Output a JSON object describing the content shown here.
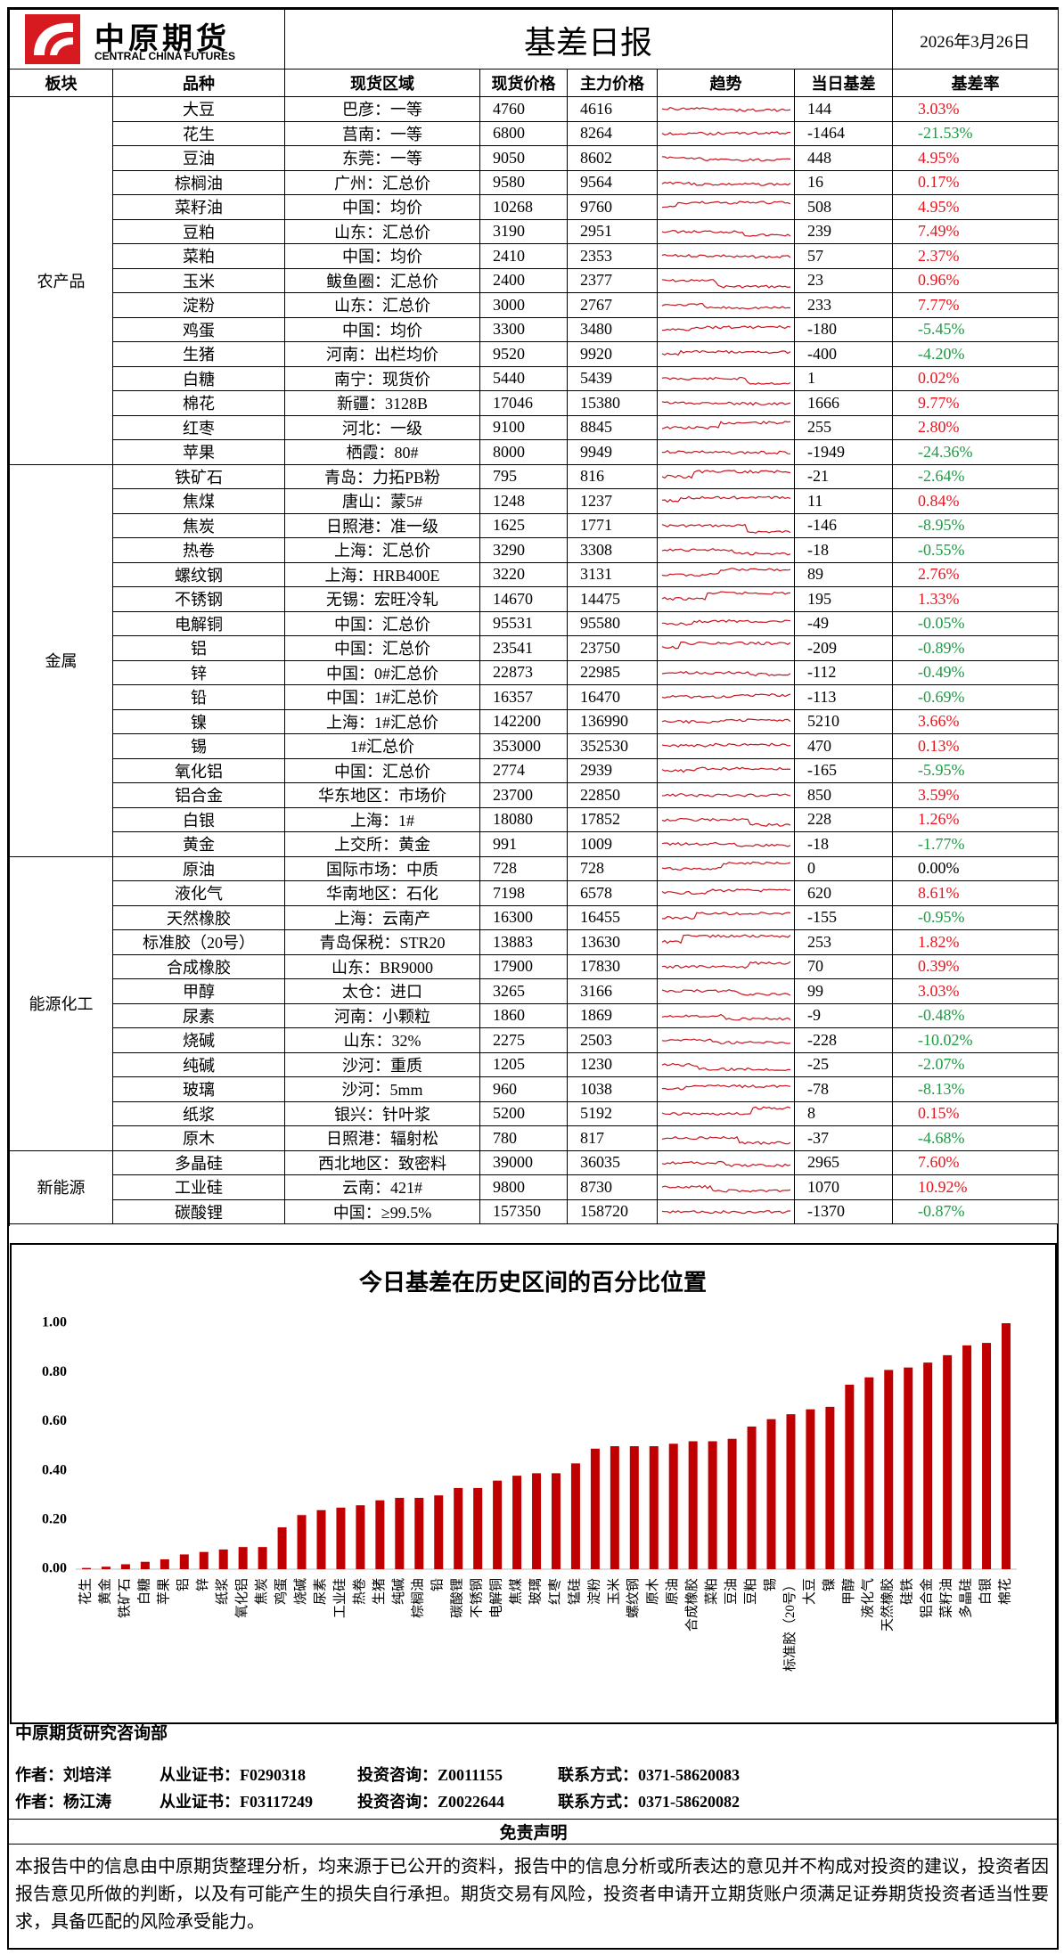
{
  "header": {
    "logo_cn": "中原期货",
    "logo_en": "CENTRAL CHINA FUTURES",
    "title": "基差日报",
    "date": "2026年3月26日"
  },
  "table": {
    "columns": [
      "板块",
      "品种",
      "现货区域",
      "现货价格",
      "主力价格",
      "趋势",
      "当日基差",
      "基差率"
    ],
    "sectors": [
      {
        "name": "农产品",
        "rows": [
          [
            "大豆",
            "巴彦：一等",
            4760,
            4616,
            144,
            "3.03%"
          ],
          [
            "花生",
            "莒南：一等",
            6800,
            8264,
            -1464,
            "-21.53%"
          ],
          [
            "豆油",
            "东莞：一等",
            9050,
            8602,
            448,
            "4.95%"
          ],
          [
            "棕榈油",
            "广州：汇总价",
            9580,
            9564,
            16,
            "0.17%"
          ],
          [
            "菜籽油",
            "中国：均价",
            10268,
            9760,
            508,
            "4.95%"
          ],
          [
            "豆粕",
            "山东：汇总价",
            3190,
            2951,
            239,
            "7.49%"
          ],
          [
            "菜粕",
            "中国：均价",
            2410,
            2353,
            57,
            "2.37%"
          ],
          [
            "玉米",
            "鲅鱼圈：汇总价",
            2400,
            2377,
            23,
            "0.96%"
          ],
          [
            "淀粉",
            "山东：汇总价",
            3000,
            2767,
            233,
            "7.77%"
          ],
          [
            "鸡蛋",
            "中国：均价",
            3300,
            3480,
            -180,
            "-5.45%"
          ],
          [
            "生猪",
            "河南：出栏均价",
            9520,
            9920,
            -400,
            "-4.20%"
          ],
          [
            "白糖",
            "南宁：现货价",
            5440,
            5439,
            1,
            "0.02%"
          ],
          [
            "棉花",
            "新疆：3128B",
            17046,
            15380,
            1666,
            "9.77%"
          ],
          [
            "红枣",
            "河北：一级",
            9100,
            8845,
            255,
            "2.80%"
          ],
          [
            "苹果",
            "栖霞：80#",
            8000,
            9949,
            -1949,
            "-24.36%"
          ]
        ]
      },
      {
        "name": "金属",
        "rows": [
          [
            "铁矿石",
            "青岛：力拓PB粉",
            795,
            816,
            -21,
            "-2.64%"
          ],
          [
            "焦煤",
            "唐山：蒙5#",
            1248,
            1237,
            11,
            "0.84%"
          ],
          [
            "焦炭",
            "日照港：准一级",
            1625,
            1771,
            -146,
            "-8.95%"
          ],
          [
            "热卷",
            "上海：汇总价",
            3290,
            3308,
            -18,
            "-0.55%"
          ],
          [
            "螺纹钢",
            "上海：HRB400E",
            3220,
            3131,
            89,
            "2.76%"
          ],
          [
            "不锈钢",
            "无锡：宏旺冷轧",
            14670,
            14475,
            195,
            "1.33%"
          ],
          [
            "电解铜",
            "中国：汇总价",
            95531,
            95580,
            -49,
            "-0.05%"
          ],
          [
            "铝",
            "中国：汇总价",
            23541,
            23750,
            -209,
            "-0.89%"
          ],
          [
            "锌",
            "中国：0#汇总价",
            22873,
            22985,
            -112,
            "-0.49%"
          ],
          [
            "铅",
            "中国：1#汇总价",
            16357,
            16470,
            -113,
            "-0.69%"
          ],
          [
            "镍",
            "上海：1#汇总价",
            142200,
            136990,
            5210,
            "3.66%"
          ],
          [
            "锡",
            "1#汇总价",
            353000,
            352530,
            470,
            "0.13%"
          ],
          [
            "氧化铝",
            "中国：汇总价",
            2774,
            2939,
            -165,
            "-5.95%"
          ],
          [
            "铝合金",
            "华东地区：市场价",
            23700,
            22850,
            850,
            "3.59%"
          ],
          [
            "白银",
            "上海：1#",
            18080,
            17852,
            228,
            "1.26%"
          ],
          [
            "黄金",
            "上交所：黄金",
            991,
            1009,
            -18,
            "-1.77%"
          ]
        ]
      },
      {
        "name": "能源化工",
        "rows": [
          [
            "原油",
            "国际市场：中质",
            728,
            728,
            0,
            "0.00%"
          ],
          [
            "液化气",
            "华南地区：石化",
            7198,
            6578,
            620,
            "8.61%"
          ],
          [
            "天然橡胶",
            "上海：云南产",
            16300,
            16455,
            -155,
            "-0.95%"
          ],
          [
            "标准胶（20号）",
            "青岛保税：STR20",
            13883,
            13630,
            253,
            "1.82%"
          ],
          [
            "合成橡胶",
            "山东：BR9000",
            17900,
            17830,
            70,
            "0.39%"
          ],
          [
            "甲醇",
            "太仓：进口",
            3265,
            3166,
            99,
            "3.03%"
          ],
          [
            "尿素",
            "河南：小颗粒",
            1860,
            1869,
            -9,
            "-0.48%"
          ],
          [
            "烧碱",
            "山东：32%",
            2275,
            2503,
            -228,
            "-10.02%"
          ],
          [
            "纯碱",
            "沙河：重质",
            1205,
            1230,
            -25,
            "-2.07%"
          ],
          [
            "玻璃",
            "沙河：5mm",
            960,
            1038,
            -78,
            "-8.13%"
          ],
          [
            "纸浆",
            "银兴：针叶浆",
            5200,
            5192,
            8,
            "0.15%"
          ],
          [
            "原木",
            "日照港：辐射松",
            780,
            817,
            -37,
            "-4.68%"
          ]
        ]
      },
      {
        "name": "新能源",
        "rows": [
          [
            "多晶硅",
            "西北地区：致密料",
            39000,
            36035,
            2965,
            "7.60%"
          ],
          [
            "工业硅",
            "云南：421#",
            9800,
            8730,
            1070,
            "10.92%"
          ],
          [
            "碳酸锂",
            "中国：≥99.5%",
            157350,
            158720,
            -1370,
            "-0.87%"
          ]
        ]
      }
    ]
  },
  "chart_data": {
    "type": "bar",
    "title": "今日基差在历史区间的百分比位置",
    "categories": [
      "花生",
      "黄金",
      "铁矿石",
      "白糖",
      "苹果",
      "铝",
      "锌",
      "纸浆",
      "氧化铝",
      "焦炭",
      "鸡蛋",
      "烧碱",
      "尿素",
      "工业硅",
      "热卷",
      "生猪",
      "纯碱",
      "棕榈油",
      "铅",
      "碳酸锂",
      "不锈钢",
      "电解铜",
      "焦煤",
      "玻璃",
      "红枣",
      "锰硅",
      "淀粉",
      "玉米",
      "螺纹钢",
      "原木",
      "原油",
      "合成橡胶",
      "菜粕",
      "豆油",
      "豆粕",
      "锡",
      "标准胶（20号）",
      "大豆",
      "镍",
      "甲醇",
      "液化气",
      "天然橡胶",
      "硅铁",
      "铝合金",
      "菜籽油",
      "多晶硅",
      "白银",
      "棉花"
    ],
    "values": [
      0.005,
      0.01,
      0.02,
      0.03,
      0.04,
      0.06,
      0.07,
      0.08,
      0.09,
      0.09,
      0.17,
      0.22,
      0.24,
      0.25,
      0.26,
      0.28,
      0.29,
      0.29,
      0.3,
      0.33,
      0.33,
      0.36,
      0.38,
      0.39,
      0.39,
      0.43,
      0.49,
      0.5,
      0.5,
      0.5,
      0.51,
      0.52,
      0.52,
      0.53,
      0.58,
      0.61,
      0.63,
      0.65,
      0.66,
      0.75,
      0.78,
      0.81,
      0.82,
      0.84,
      0.87,
      0.91,
      0.92,
      1.0
    ],
    "color": "#c00000",
    "ylim": [
      0,
      1
    ],
    "yticks": [
      {
        "value": 0,
        "label": "0.00"
      },
      {
        "value": 0.2,
        "label": "0.20"
      },
      {
        "value": 0.4,
        "label": "0.40"
      },
      {
        "value": 0.6,
        "label": "0.60"
      },
      {
        "value": 0.8,
        "label": "0.80"
      },
      {
        "value": 1,
        "label": "1.00"
      }
    ],
    "grid": false
  },
  "footer": {
    "department": "中原期货研究咨询部",
    "authors": [
      {
        "name": "作者：刘培洋",
        "cert": "从业证书：F0290318",
        "advisory": "投资咨询：Z0011155",
        "contact": "联系方式：0371-58620083"
      },
      {
        "name": "作者：杨江涛",
        "cert": "从业证书：F03117249",
        "advisory": "投资咨询：Z0022644",
        "contact": "联系方式：0371-58620082"
      }
    ],
    "disclaimer_title": "免责声明",
    "disclaimer": "本报告中的信息由中原期货整理分析，均来源于已公开的资料，报告中的信息分析或所表达的意见并不构成对投资的建议，投资者因报告意见所做的判断，以及有可能产生的损失自行承担。期货交易有风险，投资者申请开立期货账户须满足证券期货投资者适当性要求，具备匹配的风险承受能力。"
  }
}
